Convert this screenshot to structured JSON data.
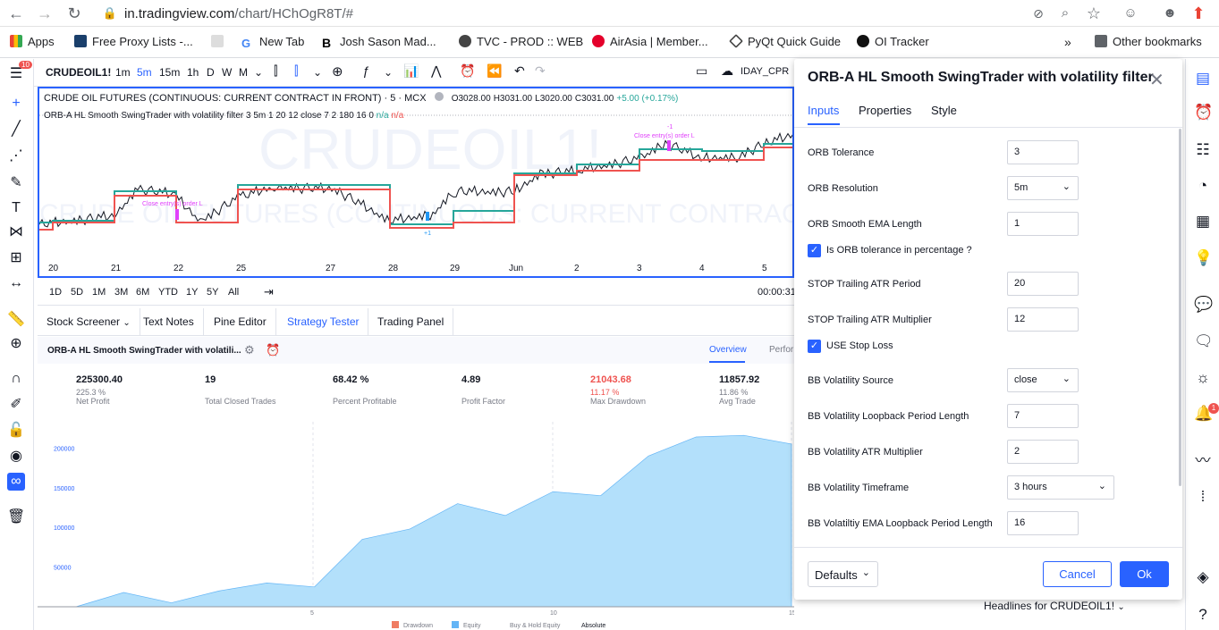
{
  "browser": {
    "url_host": "in.tradingview.com",
    "url_path": "/chart/HChOgR8T/#"
  },
  "bookmarks": [
    {
      "label": "Apps",
      "color": "#ea4335"
    },
    {
      "label": "Free Proxy Lists -...",
      "color": "#1a3f6b"
    },
    {
      "label": "",
      "color": "#555"
    },
    {
      "label": "New Tab",
      "color": "#4285f4"
    },
    {
      "label": "Josh Sason Mad...",
      "color": "#000"
    },
    {
      "label": "TVC - PROD :: WEB",
      "color": "#333"
    },
    {
      "label": "AirAsia | Member...",
      "color": "#e4002b"
    },
    {
      "label": "PyQt Quick Guide",
      "color": "#444"
    },
    {
      "label": "OI Tracker",
      "color": "#111"
    }
  ],
  "other_bookmarks": "Other bookmarks",
  "toolbar": {
    "symbol": "CRUDEOIL1!",
    "intervals": [
      "1m",
      "5m",
      "15m",
      "1h",
      "D",
      "W",
      "M"
    ],
    "active_interval": "5m",
    "indicator_name": "IDAY_CPR"
  },
  "chart": {
    "legend_title": "CRUDE OIL FUTURES (CONTINUOUS: CURRENT CONTRACT IN FRONT) · 5 · MCX",
    "ohlc": {
      "o": "O3028.00",
      "h": "H3031.00",
      "l": "L3020.00",
      "c": "C3031.00",
      "chg": "+5.00 (+0.17%)"
    },
    "study_legend": "ORB-A HL Smooth SwingTrader with volatility filter 3 5m 1 20 12 close 7 2 180 16 0",
    "study_na1": "n/a",
    "study_na2": "n/a",
    "watermark_big": "CRUDEOIL1!",
    "watermark_small": "CRUDE OIL FUTURES (CONTINUOUS: CURRENT CONTRACT",
    "annot_1": "Close entry(s) order L",
    "annot_2": "Close entry(s) order L",
    "annot_plus1": "+1",
    "annot_minus1": "-1",
    "x_labels": [
      "20",
      "21",
      "22",
      "25",
      "27",
      "28",
      "29",
      "Jun",
      "2",
      "3",
      "4",
      "5"
    ]
  },
  "ranges": [
    "1D",
    "5D",
    "1M",
    "3M",
    "6M",
    "YTD",
    "1Y",
    "5Y",
    "All"
  ],
  "clock": "00:00:31",
  "bottom_tabs": [
    "Stock Screener",
    "Text Notes",
    "Pine Editor",
    "Strategy Tester",
    "Trading Panel"
  ],
  "strategy": {
    "name": "ORB-A HL Smooth SwingTrader with volatili...",
    "tabs": [
      "Overview",
      "Perfor"
    ],
    "metrics": [
      {
        "value": "225300.40",
        "sub": "225.3 %",
        "label": "Net Profit",
        "color": "#131722"
      },
      {
        "value": "19",
        "sub": "",
        "label": "Total Closed Trades",
        "color": "#131722"
      },
      {
        "value": "68.42 %",
        "sub": "",
        "label": "Percent Profitable",
        "color": "#131722"
      },
      {
        "value": "4.89",
        "sub": "",
        "label": "Profit Factor",
        "color": "#131722"
      },
      {
        "value": "21043.68",
        "sub": "11.17 %",
        "label": "Max Drawdown",
        "color": "#ef5350"
      },
      {
        "value": "11857.92",
        "sub": "11.86 %",
        "label": "Avg Trade",
        "color": "#131722"
      }
    ],
    "y_labels": [
      "200000",
      "150000",
      "100000",
      "50000"
    ],
    "x_labels": [
      "5",
      "10",
      "15"
    ],
    "legend": [
      "Drawdown",
      "Equity",
      "Buy & Hold Equity",
      "Absolute"
    ],
    "equity": [
      0,
      18000,
      5000,
      20000,
      30000,
      25000,
      85000,
      98000,
      130000,
      115000,
      145000,
      140000,
      190000,
      214000,
      216000,
      205000
    ]
  },
  "headlines": "Headlines for CRUDEOIL1!",
  "dialog": {
    "title": "ORB-A HL Smooth SwingTrader with volatility filter",
    "tabs": [
      "Inputs",
      "Properties",
      "Style"
    ],
    "fields": [
      {
        "label": "ORB Tolerance",
        "value": "3",
        "type": "input"
      },
      {
        "label": "ORB Resolution",
        "value": "5m",
        "type": "select"
      },
      {
        "label": "ORB Smooth EMA Length",
        "value": "1",
        "type": "input"
      },
      {
        "label": "Is ORB tolerance in percentage ?",
        "value": "",
        "type": "check"
      },
      {
        "label": "STOP Trailing ATR Period",
        "value": "20",
        "type": "input"
      },
      {
        "label": "STOP Trailing ATR Multiplier",
        "value": "12",
        "type": "input"
      },
      {
        "label": "USE Stop Loss",
        "value": "",
        "type": "check"
      },
      {
        "label": "BB Volatility Source",
        "value": "close",
        "type": "select"
      },
      {
        "label": "BB Volatility Loopback Period Length",
        "value": "7",
        "type": "input"
      },
      {
        "label": "BB Volatility ATR Multiplier",
        "value": "2",
        "type": "input"
      },
      {
        "label": "BB Volatility Timeframe",
        "value": "3 hours",
        "type": "select-wide"
      },
      {
        "label": "BB Volatiltiy EMA Loopback Period Length",
        "value": "16",
        "type": "input"
      }
    ],
    "defaults": "Defaults",
    "cancel": "Cancel",
    "ok": "Ok"
  },
  "notification_count": "10",
  "alert_badge": "1"
}
